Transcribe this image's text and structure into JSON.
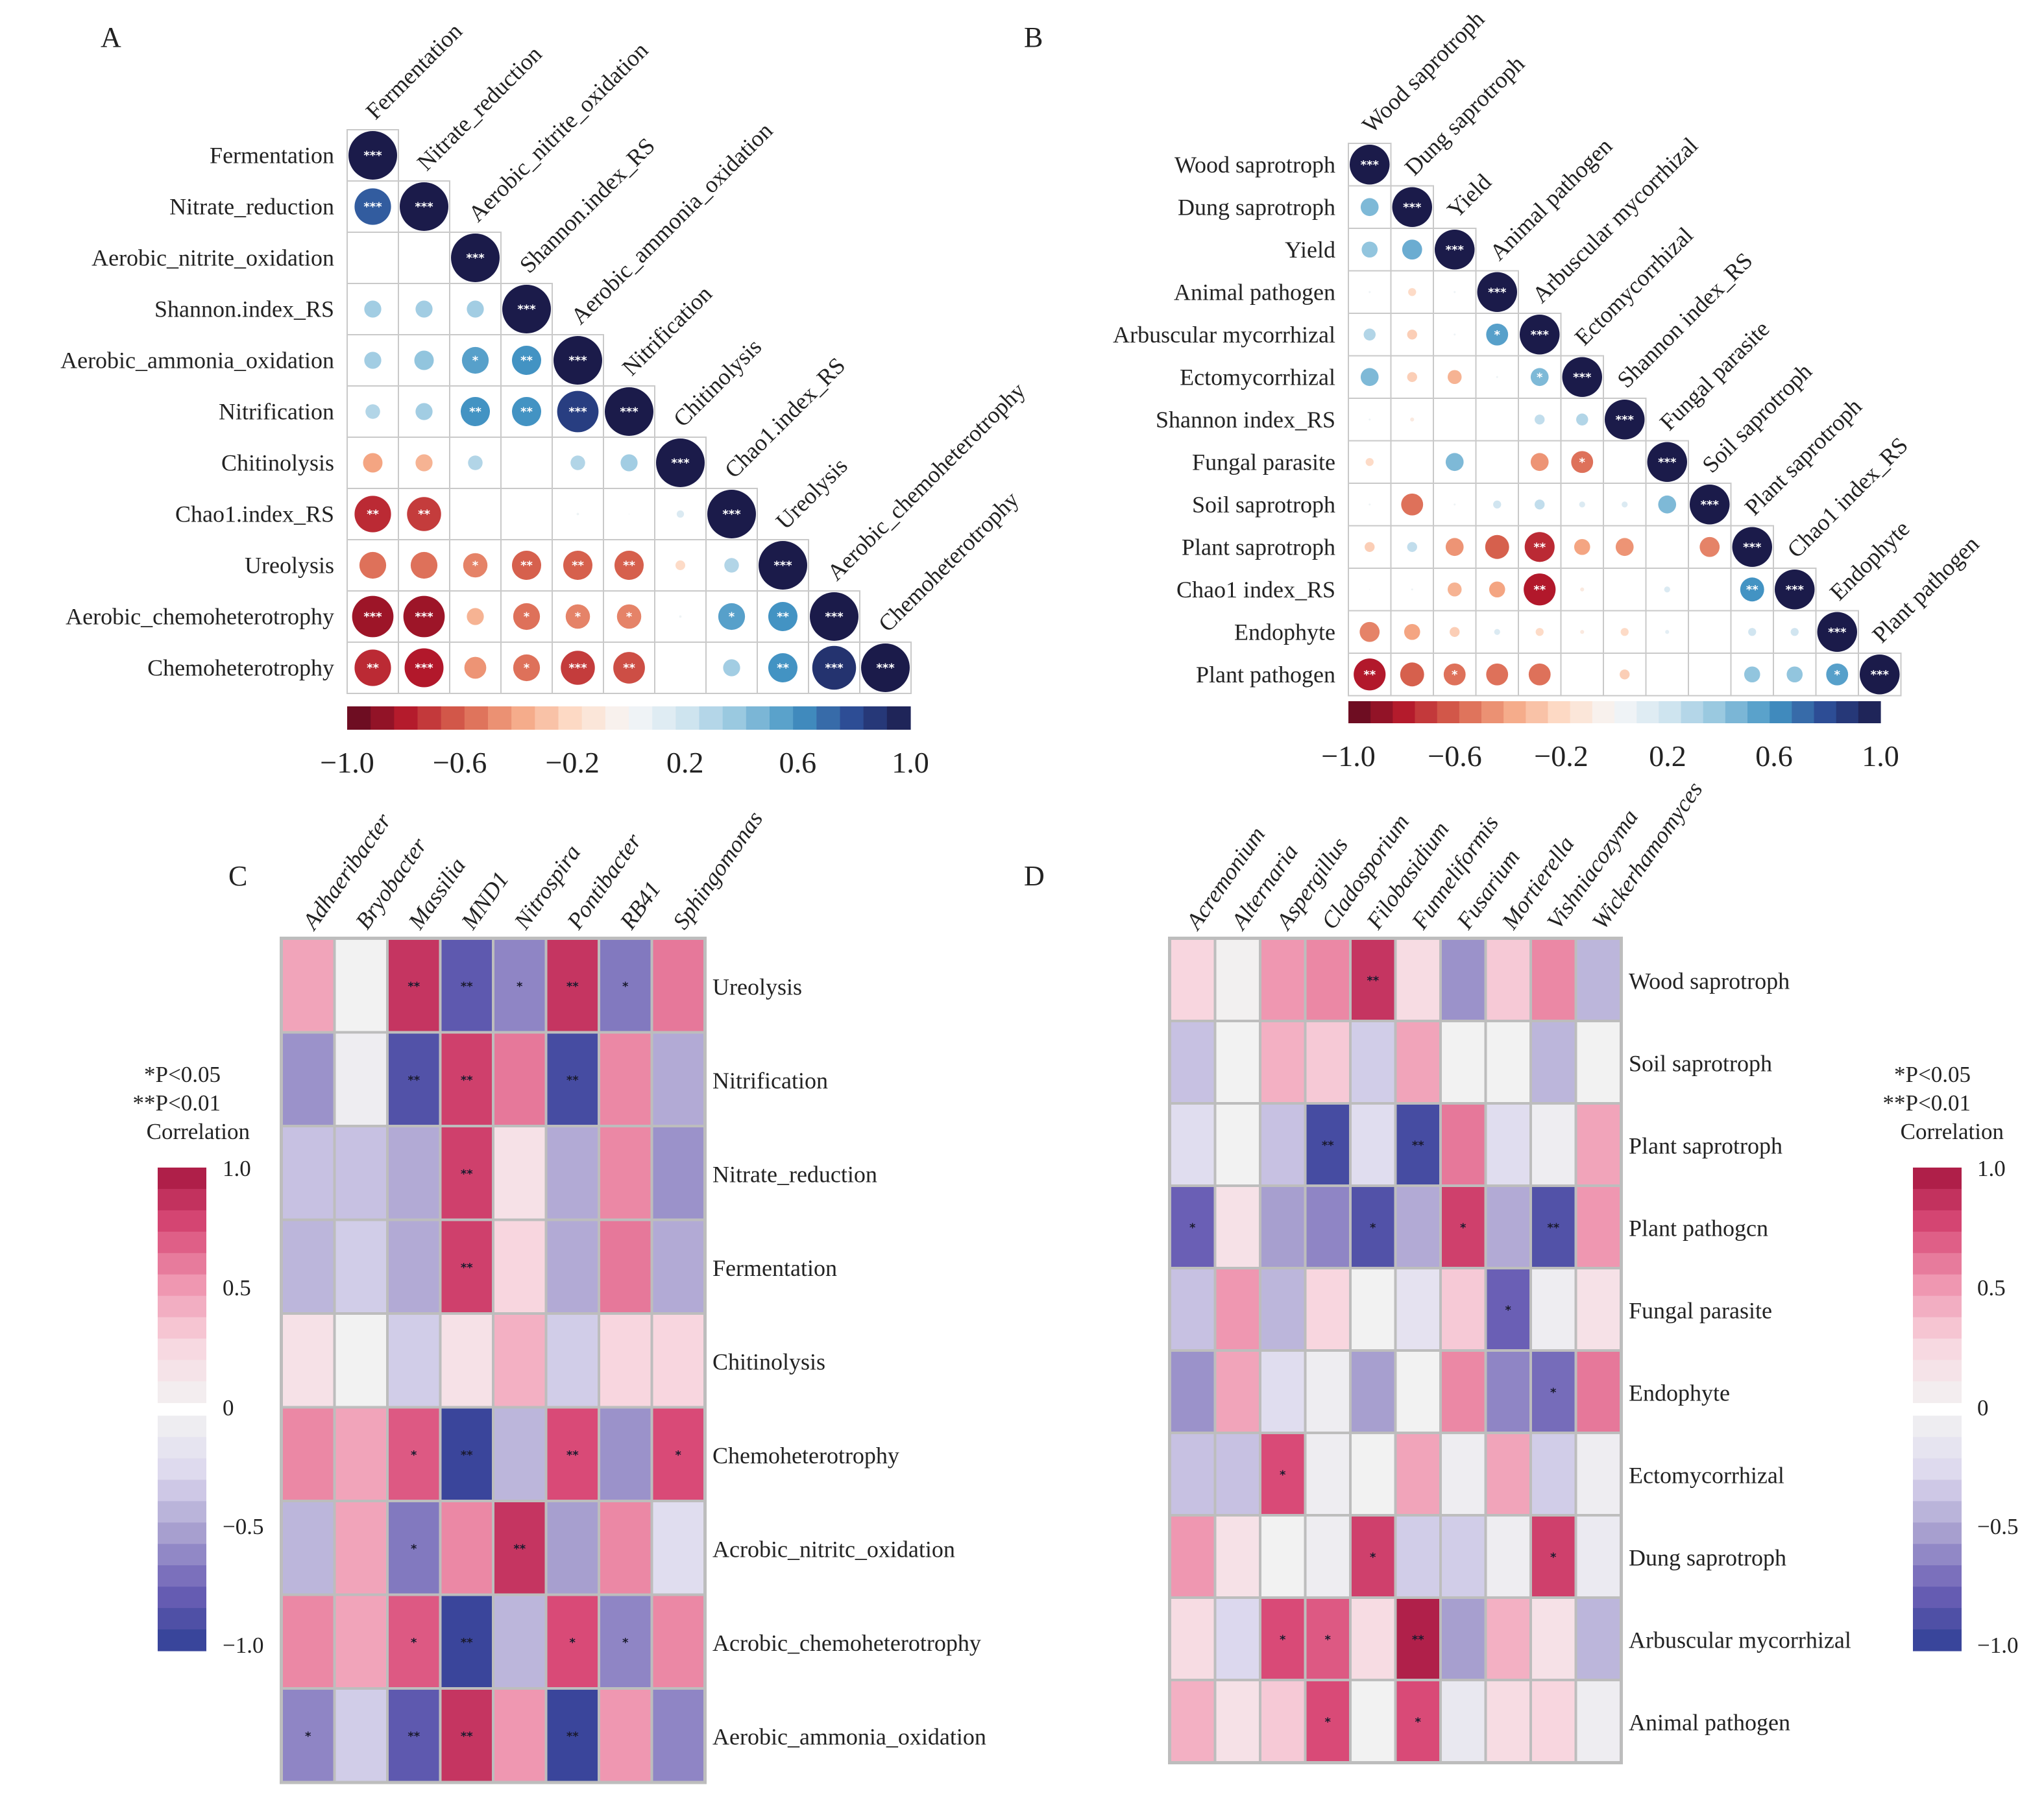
{
  "panel_letters": [
    "A",
    "B",
    "C",
    "D"
  ],
  "legend_c": {
    "sig1": "*P<0.05",
    "sig2": "**P<0.01",
    "title": "Correlation",
    "ticks": [
      "1.0",
      "0.5",
      "0",
      "−0.5",
      "−1.0"
    ]
  },
  "legend_d": {
    "sig1": "*P<0.05",
    "sig2": "**P<0.01",
    "title": "Correlation",
    "ticks": [
      "1.0",
      "0.5",
      "0",
      "−0.5",
      "−1.0"
    ]
  },
  "palette": {
    "diverging_A_B": [
      "#5c0a1f",
      "#b2182b",
      "#d6604d",
      "#f4a582",
      "#fddbc7",
      "#f7f7f7",
      "#d1e5f0",
      "#92c5de",
      "#4393c3",
      "#2c4a93",
      "#1b1b4a"
    ],
    "diverging_C_D": [
      "#2e3f95",
      "#6a5fb5",
      "#a79fcf",
      "#dcd8ee",
      "#f2f2f2",
      "#f8d6df",
      "#ef97b1",
      "#d94a77",
      "#a6163f"
    ]
  },
  "chart_data": [
    {
      "panel": "A",
      "type": "heatmap",
      "style": "circle-lower-triangle",
      "labels": [
        "Fermentation",
        "Nitrate_reduction",
        "Aerobic_nitrite_oxidation",
        "Shannon.index_RS",
        "Aerobic_ammonia_oxidation",
        "Nitrification",
        "Chitinolysis",
        "Chao1.index_RS",
        "Ureolysis",
        "Aerobic_chemoheterotrophy",
        "Chemoheterotrophy"
      ],
      "colorbar": {
        "range": [
          -1.0,
          1.0
        ],
        "ticks": [
          "−1.0",
          "−0.6",
          "−0.2",
          "0.2",
          "0.6",
          "1.0"
        ]
      },
      "matrix": [
        [
          1.0
        ],
        [
          0.75,
          1.0
        ],
        [
          0,
          0,
          1.0
        ],
        [
          0.35,
          0.35,
          0.35,
          1.0
        ],
        [
          0.35,
          0.4,
          0.55,
          0.6,
          1.0
        ],
        [
          0.3,
          0.35,
          0.6,
          0.6,
          0.85,
          1.0
        ],
        [
          -0.4,
          -0.35,
          0.3,
          0,
          0.3,
          0.35,
          1.0
        ],
        [
          -0.75,
          -0.7,
          0,
          0,
          0.05,
          0.02,
          0.15,
          1.0
        ],
        [
          -0.55,
          -0.55,
          -0.5,
          -0.6,
          -0.6,
          -0.6,
          -0.2,
          0.3,
          1.0
        ],
        [
          -0.85,
          -0.85,
          -0.35,
          -0.55,
          -0.5,
          -0.5,
          0.05,
          0.55,
          0.6,
          1.0
        ],
        [
          -0.75,
          -0.8,
          -0.45,
          -0.55,
          -0.7,
          -0.65,
          0,
          0.35,
          0.6,
          0.9,
          1.0
        ]
      ],
      "stars": [
        [
          "***"
        ],
        [
          "***",
          "***"
        ],
        [
          "",
          "",
          "***"
        ],
        [
          "",
          "",
          "",
          "***"
        ],
        [
          "",
          "",
          "*",
          "**",
          "***"
        ],
        [
          "",
          "",
          "**",
          "**",
          "***",
          "***"
        ],
        [
          "",
          "",
          "",
          "",
          "",
          "",
          "***"
        ],
        [
          "**",
          "**",
          "",
          "",
          "",
          "",
          "",
          "***"
        ],
        [
          "",
          "",
          "*",
          "**",
          "**",
          "**",
          "",
          "",
          "***"
        ],
        [
          "***",
          "***",
          "",
          "*",
          "*",
          "*",
          "",
          "*",
          "**",
          "***"
        ],
        [
          "**",
          "***",
          "",
          "*",
          "***",
          "**",
          "",
          "",
          "**",
          "***",
          "***"
        ]
      ]
    },
    {
      "panel": "B",
      "type": "heatmap",
      "style": "circle-lower-triangle",
      "labels": [
        "Wood saprotroph",
        "Dung saprotroph",
        "Yield",
        "Animal pathogen",
        "Arbuscular mycorrhizal",
        "Ectomycorrhizal",
        "Shannon index_RS",
        "Fungal parasite",
        "Soil saprotroph",
        "Plant saprotroph",
        "Chao1 index_RS",
        "Endophyte",
        "Plant pathogen"
      ],
      "colorbar": {
        "range": [
          -1.0,
          1.0
        ],
        "ticks": [
          "−1.0",
          "−0.6",
          "−0.2",
          "0.2",
          "0.6",
          "1.0"
        ]
      },
      "matrix": [
        [
          1.0
        ],
        [
          0.45,
          1.0
        ],
        [
          0.4,
          0.5,
          1.0
        ],
        [
          0.05,
          -0.2,
          0.05,
          1.0
        ],
        [
          0.3,
          -0.25,
          0.05,
          0.55,
          1.0
        ],
        [
          0.45,
          -0.25,
          -0.35,
          0.05,
          0.45,
          1.0
        ],
        [
          0.05,
          -0.1,
          0,
          0,
          0.25,
          0.3,
          1.0
        ],
        [
          -0.2,
          0,
          0.45,
          0,
          -0.45,
          -0.55,
          0,
          1.0
        ],
        [
          0.05,
          -0.55,
          0.05,
          0.2,
          0.25,
          0.15,
          0.15,
          0.45,
          1.0
        ],
        [
          -0.25,
          0.25,
          -0.45,
          -0.6,
          -0.75,
          -0.4,
          -0.45,
          0,
          -0.5,
          1.0
        ],
        [
          0.02,
          0.05,
          -0.35,
          -0.4,
          -0.8,
          -0.1,
          0,
          0.15,
          0,
          0.6,
          1.0
        ],
        [
          -0.5,
          -0.4,
          -0.25,
          0.15,
          -0.2,
          -0.1,
          -0.2,
          0.1,
          0,
          0.2,
          0.2,
          1.0
        ],
        [
          -0.8,
          -0.6,
          -0.55,
          -0.55,
          -0.55,
          0,
          -0.25,
          0,
          0,
          0.4,
          0.4,
          0.55,
          1.0
        ]
      ],
      "stars": [
        [
          "***"
        ],
        [
          "",
          "***"
        ],
        [
          "",
          "",
          "***"
        ],
        [
          "",
          "",
          "",
          "***"
        ],
        [
          "",
          "",
          "",
          "*",
          "***"
        ],
        [
          "",
          "",
          "",
          "",
          "*",
          "***"
        ],
        [
          "",
          "",
          "",
          "",
          "",
          "",
          "***"
        ],
        [
          "",
          "",
          "",
          "",
          "",
          "*",
          "",
          "***"
        ],
        [
          "",
          "",
          "",
          "",
          "",
          "",
          "",
          "",
          "***"
        ],
        [
          "",
          "",
          "",
          "",
          "**",
          "",
          "",
          "",
          "",
          "***"
        ],
        [
          "",
          "",
          "",
          "",
          "**",
          "",
          "",
          "",
          "",
          "**",
          "***"
        ],
        [
          "",
          "",
          "",
          "",
          "",
          "",
          "",
          "",
          "",
          "",
          "",
          "***"
        ],
        [
          "**",
          "",
          "*",
          "",
          "",
          "",
          "",
          "",
          "",
          "",
          "",
          "*",
          "***"
        ]
      ]
    },
    {
      "panel": "C",
      "type": "heatmap",
      "columns": [
        "Adhaeribacter",
        "Bryobacter",
        "Massilia",
        "MND1",
        "Nitrospira",
        "Pontibacter",
        "RB41",
        "Sphingomonas"
      ],
      "rows": [
        "Ureolysis",
        "Nitrification",
        "Nitrate_reduction",
        "Fermentation",
        "Chitinolysis",
        "Chemoheterotrophy",
        "Acrobic_nitritc_oxidation",
        "Acrobic_chemoheterotrophy",
        "Aerobic_ammonia_oxidation"
      ],
      "colorbar": {
        "range": [
          -1.0,
          1.0
        ]
      },
      "matrix": [
        [
          0.45,
          0.0,
          0.85,
          -0.8,
          -0.6,
          0.85,
          -0.65,
          0.6
        ],
        [
          -0.55,
          -0.05,
          -0.85,
          0.8,
          0.6,
          -0.9,
          0.55,
          -0.45
        ],
        [
          -0.35,
          -0.35,
          -0.45,
          0.8,
          0.15,
          -0.45,
          0.55,
          -0.55
        ],
        [
          -0.4,
          -0.3,
          -0.45,
          0.8,
          0.25,
          -0.45,
          0.6,
          -0.45
        ],
        [
          0.15,
          0.0,
          -0.3,
          0.15,
          0.4,
          -0.3,
          0.25,
          0.25
        ],
        [
          0.55,
          0.45,
          0.7,
          -0.95,
          -0.4,
          0.75,
          -0.55,
          0.75
        ],
        [
          -0.4,
          0.45,
          -0.65,
          0.55,
          0.85,
          -0.5,
          0.55,
          -0.2
        ],
        [
          0.55,
          0.45,
          0.7,
          -0.95,
          -0.4,
          0.75,
          -0.6,
          0.55
        ],
        [
          -0.6,
          -0.3,
          -0.8,
          0.85,
          0.5,
          -0.95,
          0.5,
          -0.6
        ]
      ],
      "stars": [
        [
          "",
          "",
          "**",
          "**",
          "*",
          "**",
          "*",
          ""
        ],
        [
          "",
          "",
          "**",
          "**",
          "",
          "**",
          "",
          ""
        ],
        [
          "",
          "",
          "",
          "**",
          "",
          "",
          "",
          ""
        ],
        [
          "",
          "",
          "",
          "**",
          "",
          "",
          "",
          ""
        ],
        [
          "",
          "",
          "",
          "",
          "",
          "",
          "",
          ""
        ],
        [
          "",
          "",
          "*",
          "**",
          "",
          "**",
          "",
          "*"
        ],
        [
          "",
          "",
          "*",
          "",
          "**",
          "",
          "",
          ""
        ],
        [
          "",
          "",
          "*",
          "**",
          "",
          "*",
          "*",
          ""
        ],
        [
          "*",
          "",
          "**",
          "**",
          "",
          "**",
          "",
          ""
        ]
      ]
    },
    {
      "panel": "D",
      "type": "heatmap",
      "columns": [
        "Acremonium",
        "Alternaria",
        "Aspergillus",
        "Cladosporium",
        "Filobasidium",
        "Funneliformis",
        "Fusarium",
        "Mortierella",
        "Vishniacozyma",
        "Wickerhamomyces"
      ],
      "rows": [
        "Wood saprotroph",
        "Soil saprotroph",
        "Plant saprotroph",
        "Plant pathogcn",
        "Fungal parasite",
        "Endophyte",
        "Ectomycorrhizal",
        "Dung saprotroph",
        "Arbuscular mycorrhizal",
        "Animal pathogen"
      ],
      "colorbar": {
        "range": [
          -1.0,
          1.0
        ]
      },
      "matrix": [
        [
          0.25,
          0.02,
          0.5,
          0.55,
          0.85,
          0.2,
          -0.55,
          0.3,
          0.55,
          -0.4
        ],
        [
          -0.35,
          0.0,
          0.4,
          0.3,
          -0.3,
          0.45,
          0.0,
          0.0,
          -0.4,
          0.0
        ],
        [
          -0.2,
          0.0,
          -0.35,
          -0.9,
          -0.2,
          -0.9,
          0.6,
          -0.2,
          -0.05,
          0.45
        ],
        [
          -0.75,
          0.15,
          -0.5,
          -0.6,
          -0.85,
          -0.45,
          0.8,
          -0.45,
          -0.85,
          0.5
        ],
        [
          -0.35,
          0.5,
          -0.4,
          0.25,
          0.0,
          -0.15,
          0.3,
          -0.75,
          -0.05,
          0.15
        ],
        [
          -0.55,
          0.45,
          -0.2,
          -0.05,
          -0.5,
          0.0,
          0.55,
          -0.6,
          -0.7,
          0.6
        ],
        [
          -0.35,
          -0.35,
          0.75,
          -0.05,
          0.0,
          0.45,
          -0.05,
          0.45,
          -0.3,
          -0.05
        ],
        [
          0.5,
          0.15,
          0.0,
          -0.05,
          0.8,
          -0.3,
          -0.3,
          -0.05,
          0.8,
          -0.08
        ],
        [
          0.2,
          -0.25,
          0.75,
          0.7,
          0.2,
          0.95,
          -0.5,
          0.4,
          0.15,
          -0.4
        ],
        [
          0.4,
          0.15,
          0.3,
          0.75,
          0.0,
          0.75,
          -0.1,
          0.2,
          0.25,
          -0.05
        ]
      ],
      "stars": [
        [
          "",
          "",
          "",
          "",
          "**",
          "",
          "",
          "",
          "",
          ""
        ],
        [
          "",
          "",
          "",
          "",
          "",
          "",
          "",
          "",
          "",
          ""
        ],
        [
          "",
          "",
          "",
          "**",
          "",
          "**",
          "",
          "",
          "",
          ""
        ],
        [
          "*",
          "",
          "",
          "",
          "*",
          "",
          "*",
          "",
          "**",
          ""
        ],
        [
          "",
          "",
          "",
          "",
          "",
          "",
          "",
          "*",
          "",
          ""
        ],
        [
          "",
          "",
          "",
          "",
          "",
          "",
          "",
          "",
          "*",
          ""
        ],
        [
          "",
          "",
          "*",
          "",
          "",
          "",
          "",
          "",
          "",
          ""
        ],
        [
          "",
          "",
          "",
          "",
          "*",
          "",
          "",
          "",
          "*",
          ""
        ],
        [
          "",
          "",
          "*",
          "*",
          "",
          "**",
          "",
          "",
          "",
          ""
        ],
        [
          "",
          "",
          "",
          "*",
          "",
          "*",
          "",
          "",
          "",
          ""
        ]
      ]
    }
  ]
}
